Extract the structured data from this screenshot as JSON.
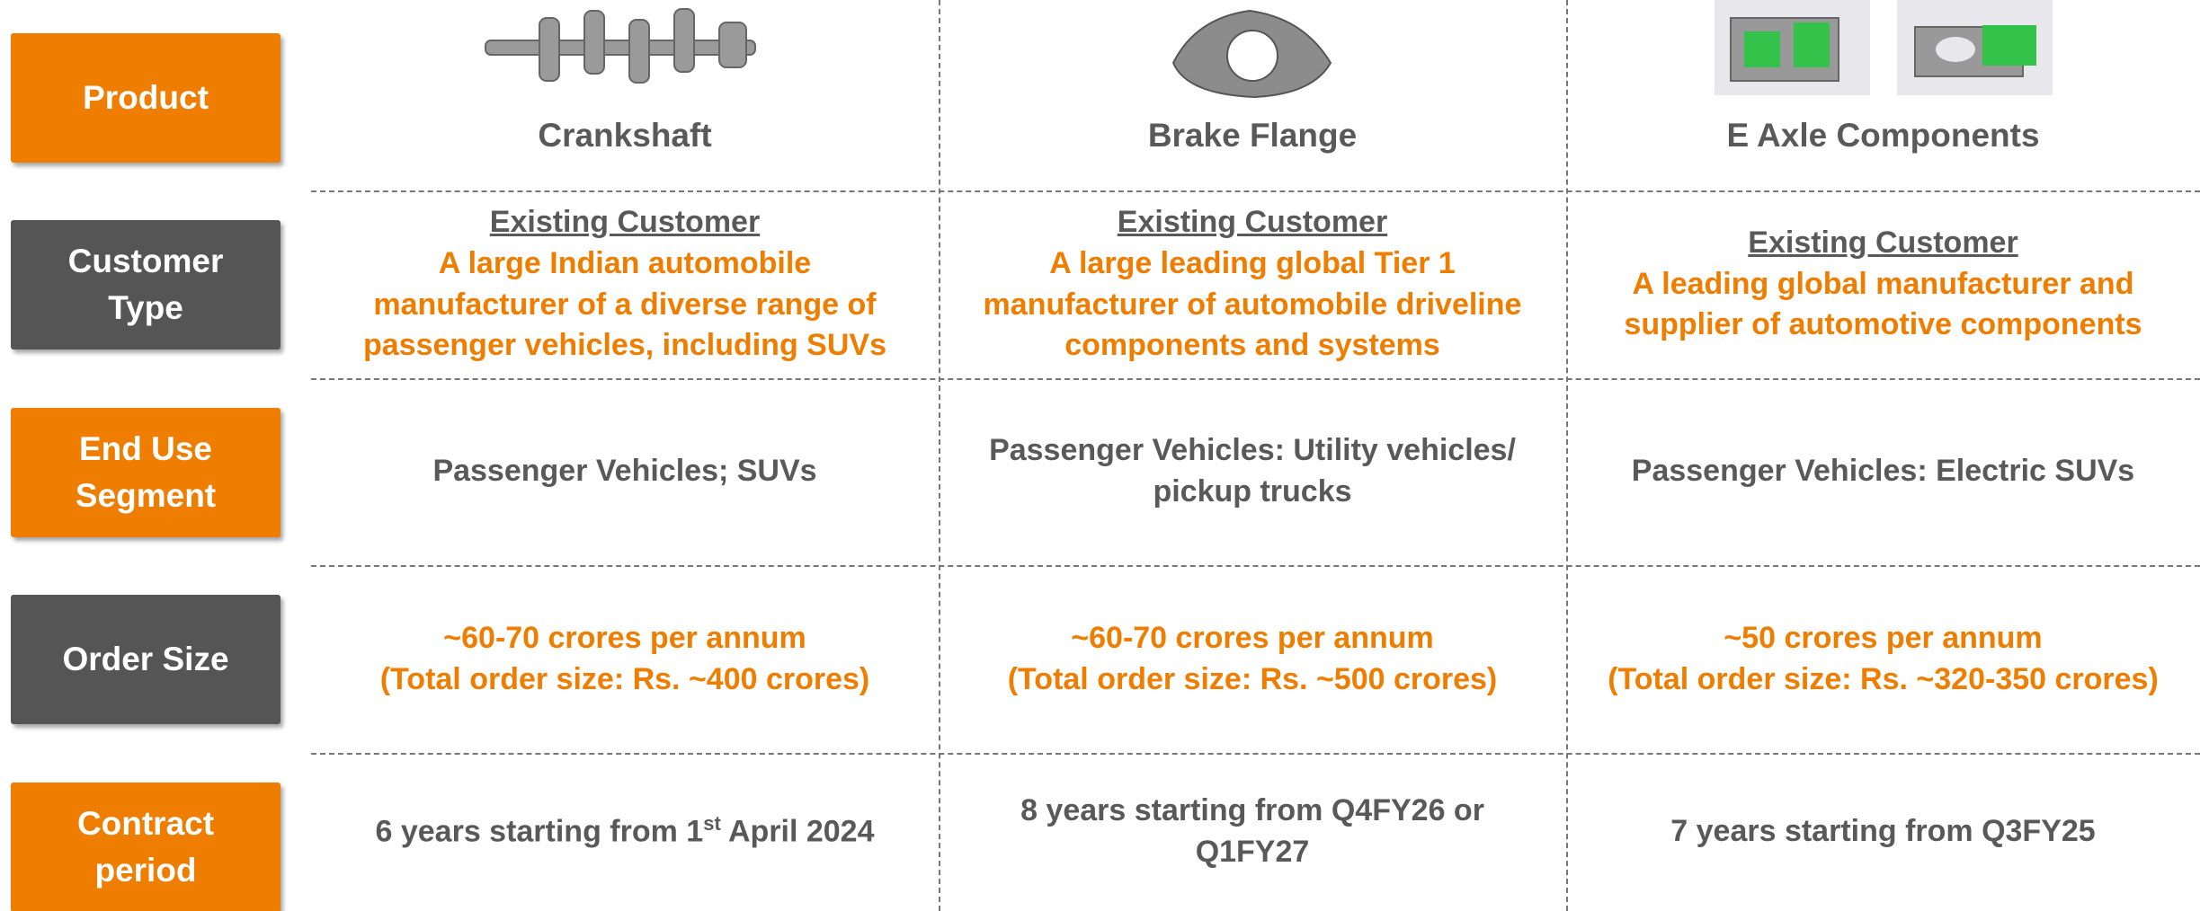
{
  "rows": [
    {
      "label": "Product",
      "cells": [
        {
          "name": "Crankshaft"
        },
        {
          "name": "Brake Flange"
        },
        {
          "name": "E Axle Components"
        }
      ]
    },
    {
      "label": "Customer Type",
      "cells": [
        {
          "heading": "Existing Customer",
          "text": "A large Indian automobile manufacturer of a diverse range of passenger vehicles, including SUVs"
        },
        {
          "heading": "Existing Customer",
          "text": "A large leading global Tier 1 manufacturer of automobile driveline components and systems"
        },
        {
          "heading": "Existing Customer",
          "text": "A leading global manufacturer and supplier of automotive components"
        }
      ]
    },
    {
      "label": "End Use Segment",
      "cells": [
        {
          "text": "Passenger Vehicles; SUVs"
        },
        {
          "text": "Passenger Vehicles: Utility vehicles/ pickup trucks"
        },
        {
          "text": "Passenger Vehicles: Electric SUVs"
        }
      ]
    },
    {
      "label": "Order Size",
      "cells": [
        {
          "lines": [
            "~60-70 crores per annum",
            "(Total order size: Rs. ~400 crores)"
          ]
        },
        {
          "lines": [
            "~60-70 crores per annum",
            "(Total order size: Rs. ~500 crores)"
          ]
        },
        {
          "lines": [
            "~50 crores per annum",
            "(Total order size: Rs. ~320-350 crores)"
          ]
        }
      ]
    },
    {
      "label": "Contract period",
      "cells": [
        {
          "text": "6 years starting from 1",
          "sup": "st",
          "tail": " April 2024"
        },
        {
          "text": "8 years starting from Q4FY26 or Q1FY27"
        },
        {
          "text": "7 years starting from Q3FY25"
        }
      ]
    }
  ]
}
